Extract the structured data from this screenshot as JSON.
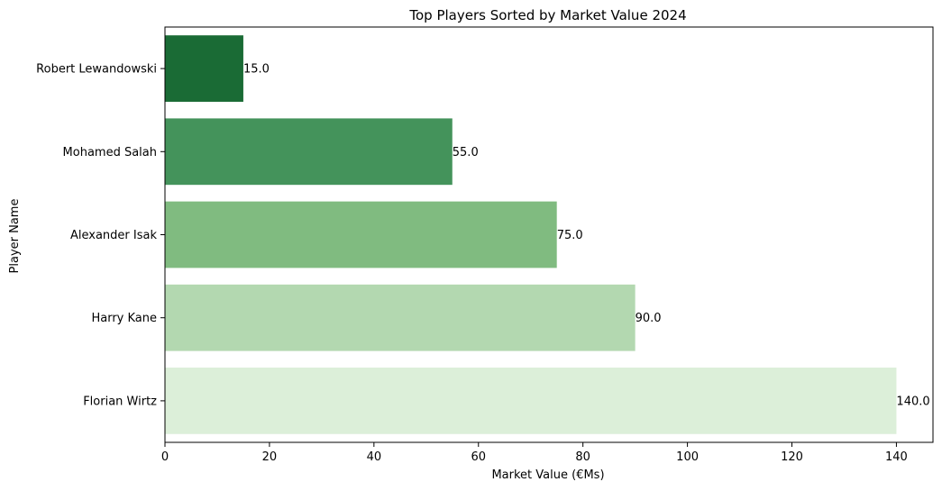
{
  "chart_data": {
    "type": "bar",
    "orientation": "horizontal",
    "title": "Top Players Sorted by Market Value 2024",
    "xlabel": "Market Value (€Ms)",
    "ylabel": "Player Name",
    "categories": [
      "Robert Lewandowski",
      "Mohamed Salah",
      "Alexander Isak",
      "Harry Kane",
      "Florian Wirtz"
    ],
    "values": [
      15.0,
      55.0,
      75.0,
      90.0,
      140.0
    ],
    "data_labels": [
      "15.0",
      "55.0",
      "75.0",
      "90.0",
      "140.0"
    ],
    "colors": [
      "#1a6b35",
      "#44935b",
      "#80bb80",
      "#b3d8b0",
      "#dcefd9"
    ],
    "xlim": [
      0,
      147
    ],
    "xticks": [
      0,
      20,
      40,
      60,
      80,
      100,
      120,
      140
    ],
    "grid": false,
    "legend": "none"
  }
}
